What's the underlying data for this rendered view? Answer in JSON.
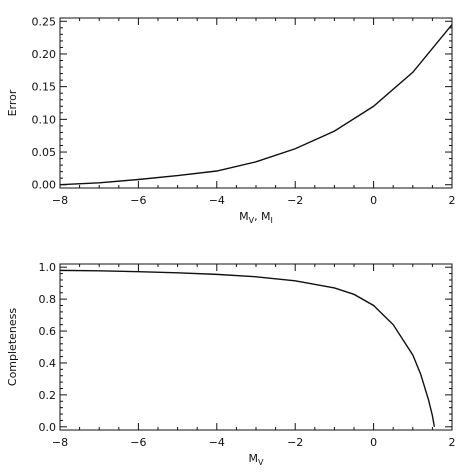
{
  "chart_data": [
    {
      "type": "line",
      "title": "",
      "xlabel": "M_V, M_I",
      "xlabel_main": "M",
      "xlabel_sub1": "V",
      "xlabel_sep": ", M",
      "xlabel_sub2": "I",
      "ylabel": "Error",
      "xlim": [
        -8,
        2
      ],
      "ylim": [
        -0.005,
        0.255
      ],
      "xticks": [
        -8,
        -6,
        -4,
        -2,
        0,
        2
      ],
      "yticks": [
        0.0,
        0.05,
        0.1,
        0.15,
        0.2,
        0.25
      ],
      "xtick_labels": [
        "−8",
        "−6",
        "−4",
        "−2",
        "0",
        "2"
      ],
      "ytick_labels": [
        "0.00",
        "0.05",
        "0.10",
        "0.15",
        "0.20",
        "0.25"
      ],
      "grid": false,
      "series": [
        {
          "x": [
            -8,
            -7,
            -6,
            -5,
            -4,
            -3,
            -2,
            -1,
            0,
            1,
            2
          ],
          "y": [
            0.0,
            0.003,
            0.008,
            0.014,
            0.021,
            0.035,
            0.055,
            0.082,
            0.12,
            0.172,
            0.245
          ]
        }
      ]
    },
    {
      "type": "line",
      "title": "",
      "xlabel": "M_V",
      "xlabel_main": "M",
      "xlabel_sub1": "V",
      "ylabel": "Completeness",
      "xlim": [
        -8,
        2
      ],
      "ylim": [
        -0.02,
        1.02
      ],
      "xticks": [
        -8,
        -6,
        -4,
        -2,
        0,
        2
      ],
      "yticks": [
        0.0,
        0.2,
        0.4,
        0.6,
        0.8,
        1.0
      ],
      "xtick_labels": [
        "−8",
        "−6",
        "−4",
        "−2",
        "0",
        "2"
      ],
      "ytick_labels": [
        "0.0",
        "0.2",
        "0.4",
        "0.6",
        "0.8",
        "1.0"
      ],
      "grid": false,
      "series": [
        {
          "x": [
            -8,
            -7,
            -6,
            -5,
            -4,
            -3,
            -2,
            -1,
            -0.5,
            0,
            0.5,
            1.0,
            1.2,
            1.4,
            1.5,
            1.55
          ],
          "y": [
            0.98,
            0.977,
            0.972,
            0.965,
            0.955,
            0.94,
            0.915,
            0.87,
            0.83,
            0.76,
            0.64,
            0.45,
            0.33,
            0.17,
            0.07,
            0.0
          ]
        }
      ]
    }
  ]
}
